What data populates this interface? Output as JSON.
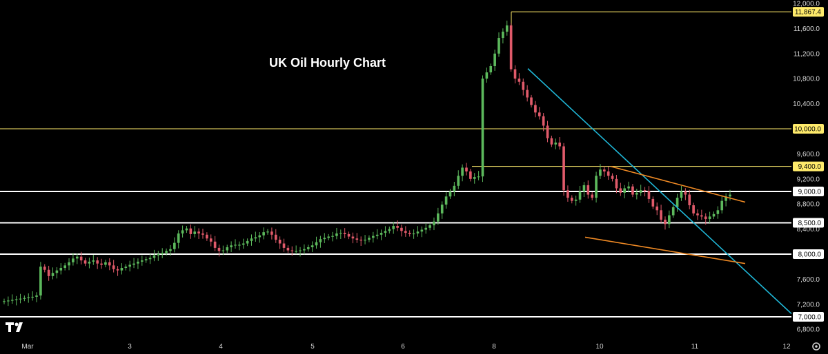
{
  "chart_data": {
    "type": "candlestick",
    "title": "UK Oil Hourly Chart",
    "x_tick_labels": [
      "Mar",
      "3",
      "4",
      "5",
      "6",
      "8",
      "10",
      "11",
      "12"
    ],
    "y_ticks": [
      6800,
      7200,
      7600,
      8000,
      8400,
      8800,
      9200,
      9600,
      10000,
      10400,
      10800,
      11200,
      11600,
      12000
    ],
    "y_tick_labels": [
      "6,800.0",
      "7,200.0",
      "7,600.0",
      "8,000.0",
      "8,400.0",
      "8,800.0",
      "9,200.0",
      "9,600.0",
      "10,000.0",
      "10,400.0",
      "10,800.0",
      "11,200.0",
      "11,600.0",
      "12,000.0"
    ],
    "ylim": [
      6650,
      12050
    ],
    "horizontal_levels": [
      {
        "value": 7000,
        "label": "7,000.0",
        "color": "#ffffff"
      },
      {
        "value": 8000,
        "label": "8,000.0",
        "color": "#ffffff"
      },
      {
        "value": 8500,
        "label": "8,500.0",
        "color": "#ffffff"
      },
      {
        "value": 9000,
        "label": "9,000.0",
        "color": "#ffffff"
      },
      {
        "value": 9400,
        "label": "9,400.0",
        "color": "#ffeb6b"
      },
      {
        "value": 10000,
        "label": "10,000.0",
        "color": "#ffeb6b"
      },
      {
        "value": 11867.4,
        "label": "11,867.4",
        "color": "#ffeb6b"
      }
    ],
    "colors": {
      "up": "#5cb85c",
      "down": "#e05a6a",
      "trendline": "#1fb6d6",
      "channel": "#f08a24",
      "level_white": "#ffffff",
      "level_yellow": "#ffeb6b",
      "background": "#000000",
      "axis_text": "#d8d8d8"
    },
    "close_path": [
      7250,
      7260,
      7270,
      7280,
      7290,
      7300,
      7310,
      7320,
      7340,
      7800,
      7750,
      7650,
      7700,
      7740,
      7780,
      7820,
      7870,
      7930,
      7960,
      7900,
      7850,
      7880,
      7900,
      7850,
      7830,
      7870,
      7820,
      7760,
      7740,
      7780,
      7800,
      7830,
      7850,
      7880,
      7900,
      7920,
      7940,
      7980,
      8000,
      8020,
      8050,
      8080,
      8180,
      8330,
      8380,
      8410,
      8320,
      8360,
      8330,
      8310,
      8250,
      8200,
      8100,
      8050,
      8060,
      8110,
      8140,
      8150,
      8150,
      8170,
      8210,
      8250,
      8270,
      8300,
      8350,
      8360,
      8310,
      8230,
      8170,
      8100,
      8060,
      8050,
      8050,
      8060,
      8080,
      8110,
      8140,
      8190,
      8240,
      8260,
      8280,
      8290,
      8330,
      8340,
      8320,
      8280,
      8250,
      8230,
      8220,
      8230,
      8260,
      8290,
      8310,
      8340,
      8370,
      8400,
      8450,
      8420,
      8370,
      8340,
      8320,
      8330,
      8360,
      8390,
      8420,
      8460,
      8520,
      8650,
      8790,
      8920,
      9000,
      9090,
      9250,
      9380,
      9320,
      9200,
      9230,
      9240,
      10800,
      10900,
      11000,
      11200,
      11450,
      11550,
      11650,
      10950,
      10800,
      10750,
      10620,
      10500,
      10380,
      10260,
      10200,
      10050,
      9850,
      9750,
      9780,
      9720,
      9020,
      8900,
      8850,
      8870,
      9000,
      9100,
      8950,
      8900,
      9250,
      9350,
      9320,
      9250,
      9200,
      9050,
      8980,
      9050,
      9080,
      8950,
      8980,
      9020,
      9010,
      8880,
      8760,
      8700,
      8550,
      8480,
      8620,
      8750,
      8900,
      9000,
      8950,
      8780,
      8650,
      8620,
      8600,
      8560,
      8600,
      8640,
      8700,
      8850,
      8920,
      8950
    ]
  }
}
